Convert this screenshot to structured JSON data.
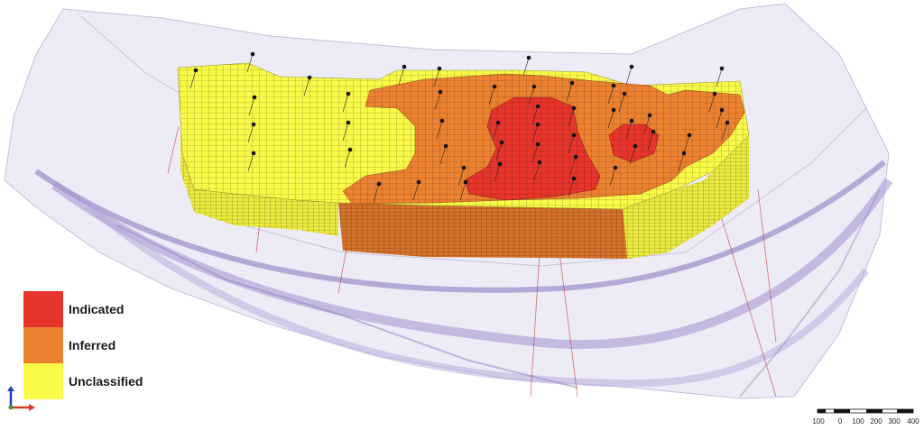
{
  "legend": {
    "items": [
      {
        "label": "Indicated",
        "color": "#e8352b"
      },
      {
        "label": "Inferred",
        "color": "#ec8130"
      },
      {
        "label": "Unclassified",
        "color": "#f9f948"
      }
    ]
  },
  "scale_bar": {
    "labels": [
      "100",
      "0",
      "100",
      "200",
      "300",
      "400"
    ]
  },
  "colors": {
    "surface": "#b7aed6",
    "drillhole": "#c43a3a",
    "collar": "#111111",
    "inferred_side": "#c8692a",
    "unclassified_side": "#e3e33c"
  }
}
